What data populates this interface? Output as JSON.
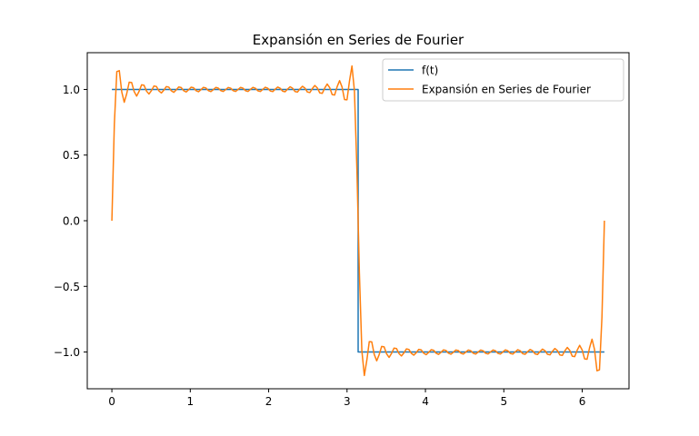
{
  "chart_data": {
    "type": "line",
    "title": "Expansión en Series de Fourier",
    "xlabel": "",
    "ylabel": "",
    "xlim": [
      -0.314,
      6.597
    ],
    "ylim": [
      -1.28,
      1.28
    ],
    "xticks": [
      0,
      1,
      2,
      3,
      4,
      5,
      6
    ],
    "yticks": [
      -1.0,
      -0.5,
      0.0,
      0.5,
      1.0
    ],
    "xtick_labels": [
      "0",
      "1",
      "2",
      "3",
      "4",
      "5",
      "6"
    ],
    "ytick_labels": [
      "−1.0",
      "−0.5",
      "0.0",
      "0.5",
      "1.0"
    ],
    "grid": false,
    "legend_position": "upper right",
    "series": [
      {
        "name": "f(t)",
        "color": "#1f77b4",
        "x": [
          0,
          3.1416,
          3.1416,
          6.2832
        ],
        "y": [
          1,
          1,
          -1,
          -1
        ]
      },
      {
        "name": "Expansión en Series de Fourier",
        "color": "#ff7f0e",
        "generator": {
          "kind": "square-wave-fourier",
          "odd_harmonics_up_to": 39,
          "x_start": 0,
          "x_end": 6.2832,
          "samples": 200
        }
      }
    ]
  }
}
